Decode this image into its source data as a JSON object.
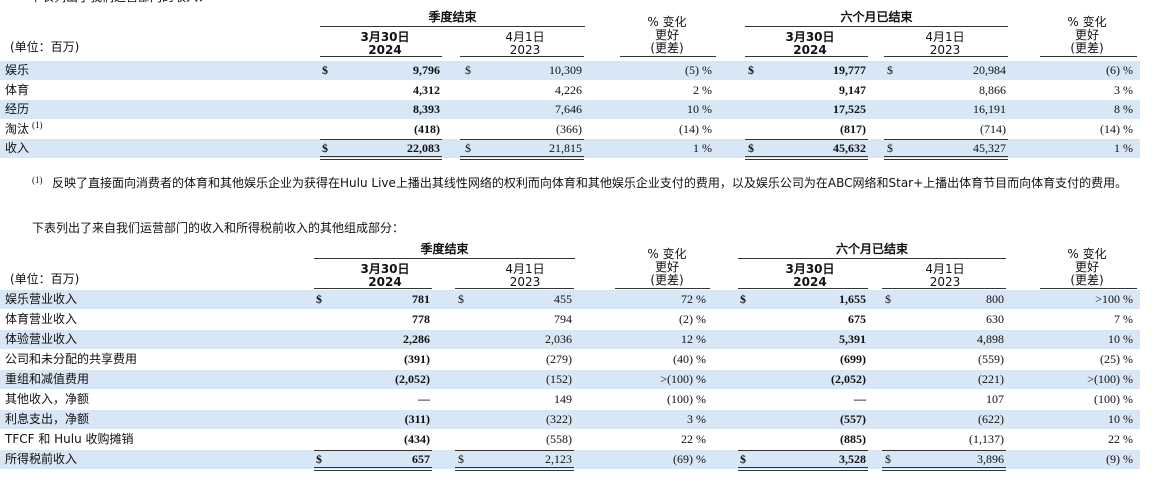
{
  "intro": "下表列出了我们运营部门的收入：",
  "tables": [
    {
      "units": "(单位：百万)",
      "groups": [
        "季度结束",
        "六个月已结束"
      ],
      "columns": [
        {
          "lines": [
            "3月30日",
            "2024"
          ]
        },
        {
          "lines": [
            "4月1日",
            "2023"
          ]
        },
        {
          "lines": [
            "% 变化",
            "更好",
            "(更差)"
          ]
        },
        {
          "lines": [
            "3月30日",
            "2024"
          ]
        },
        {
          "lines": [
            "4月1日",
            "2023"
          ]
        },
        {
          "lines": [
            "% 变化",
            "更好",
            "(更差)"
          ]
        }
      ],
      "rows": [
        {
          "label": "娱乐",
          "currency": "$",
          "cells": [
            "9,796",
            "10,309",
            "(5) %",
            "19,777",
            "20,984",
            "(6) %"
          ]
        },
        {
          "label": "体育",
          "cells": [
            "4,312",
            "4,226",
            "2 %",
            "9,147",
            "8,866",
            "3 %"
          ]
        },
        {
          "label": "经历",
          "cells": [
            "8,393",
            "7,646",
            "10 %",
            "17,525",
            "16,191",
            "8 %"
          ]
        },
        {
          "label": "淘汰",
          "note": "(1)",
          "cells": [
            "(418)",
            "(366)",
            "(14) %",
            "(817)",
            "(714)",
            "(14) %"
          ]
        },
        {
          "label": "收入",
          "currency": "$",
          "cells": [
            "22,083",
            "21,815",
            "1 %",
            "45,632",
            "45,327",
            "1 %"
          ]
        }
      ]
    },
    {
      "units": "(单位：百万)",
      "groups": [
        "季度结束",
        "六个月已结束"
      ],
      "columns": [
        {
          "lines": [
            "3月30日",
            "2024"
          ]
        },
        {
          "lines": [
            "4月1日",
            "2023"
          ]
        },
        {
          "lines": [
            "% 变化",
            "更好",
            "(更差)"
          ]
        },
        {
          "lines": [
            "3月30日",
            "2024"
          ]
        },
        {
          "lines": [
            "4月1日",
            "2023"
          ]
        },
        {
          "lines": [
            "% 变化",
            "更好",
            "(更差)"
          ]
        }
      ],
      "rows": [
        {
          "label": "娱乐营业收入",
          "currency": "$",
          "cells": [
            "781",
            "455",
            "72 %",
            "1,655",
            "800",
            ">100 %"
          ]
        },
        {
          "label": "体育营业收入",
          "cells": [
            "778",
            "794",
            "(2) %",
            "675",
            "630",
            "7 %"
          ]
        },
        {
          "label": "体验营业收入",
          "cells": [
            "2,286",
            "2,036",
            "12 %",
            "5,391",
            "4,898",
            "10 %"
          ]
        },
        {
          "label": "公司和未分配的共享费用",
          "cells": [
            "(391)",
            "(279)",
            "(40) %",
            "(699)",
            "(559)",
            "(25) %"
          ]
        },
        {
          "label": "重组和减值费用",
          "cells": [
            "(2,052)",
            "(152)",
            ">(100) %",
            "(2,052)",
            "(221)",
            ">(100) %"
          ]
        },
        {
          "label": "其他收入，净额",
          "cells": [
            "—",
            "149",
            "(100) %",
            "—",
            "107",
            "(100) %"
          ]
        },
        {
          "label": "利息支出，净额",
          "cells": [
            "(311)",
            "(322)",
            "3 %",
            "(557)",
            "(622)",
            "10 %"
          ]
        },
        {
          "label": "TFCF 和 Hulu 收购摊销",
          "cells": [
            "(434)",
            "(558)",
            "22 %",
            "(885)",
            "(1,137)",
            "22 %"
          ]
        },
        {
          "label": "所得税前收入",
          "currency": "$",
          "cells": [
            "657",
            "2,123",
            "(69) %",
            "3,528",
            "3,896",
            "(9) %"
          ]
        }
      ]
    }
  ],
  "footnote": {
    "marker": "(1)",
    "text": "反映了直接面向消费者的体育和其他娱乐企业为获得在Hulu Live上播出其线性网络的权利而向体育和其他娱乐企业支付的费用，以及娱乐公司为在ABC网络和Star+上播出体育节目而向体育支付的费用。"
  },
  "caption": "下表列出了来自我们运营部门的收入和所得税前收入的其他组成部分："
}
